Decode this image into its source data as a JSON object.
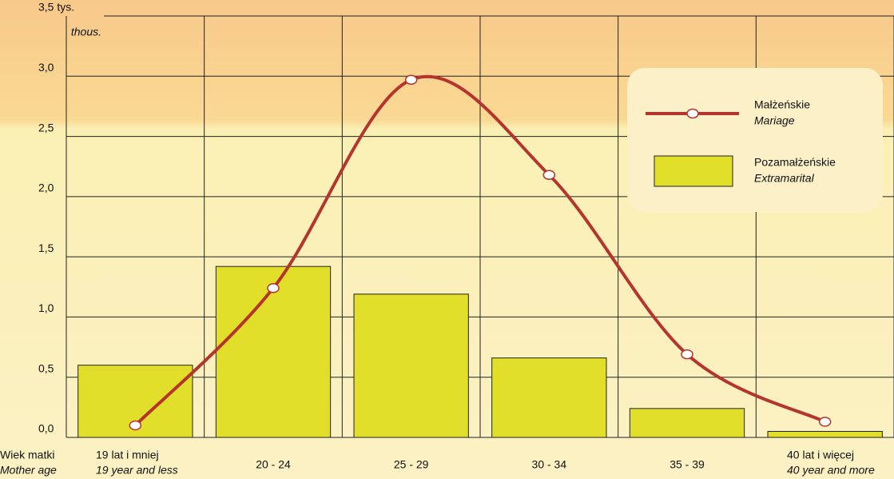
{
  "chart_data": {
    "type": "bar_line",
    "categories": [
      "19 lat i mniej",
      "20 - 24",
      "25 - 29",
      "30 - 34",
      "35 - 39",
      "40 lat i więcej"
    ],
    "categories_en": [
      "19 year and less",
      null,
      null,
      null,
      null,
      "40 year and more"
    ],
    "x_label": "Wiek matki",
    "x_label_en": "Mother age",
    "y_unit_en": "thous.",
    "series": [
      {
        "name": "Małżeńskie",
        "name_en": "Mariage",
        "type": "line",
        "color": "#b5342e",
        "values": [
          0.1,
          1.24,
          2.97,
          2.18,
          0.69,
          0.13
        ]
      },
      {
        "name": "Pozamałżeńskie",
        "name_en": "Extramarital",
        "type": "bar",
        "color": "#e2df2a",
        "values": [
          0.6,
          1.42,
          1.19,
          0.66,
          0.24,
          0.05
        ]
      }
    ],
    "ylim": [
      0,
      3.5
    ],
    "yticks": [
      {
        "value": 0,
        "label": "0,0"
      },
      {
        "value": 0.5,
        "label": "0,5"
      },
      {
        "value": 1,
        "label": "1,0"
      },
      {
        "value": 1.5,
        "label": "1,5"
      },
      {
        "value": 2,
        "label": "2,0"
      },
      {
        "value": 2.5,
        "label": "2,5"
      },
      {
        "value": 3,
        "label": "3,0"
      },
      {
        "value": 3.5,
        "label": "3,5 tys."
      }
    ],
    "grid": true
  }
}
